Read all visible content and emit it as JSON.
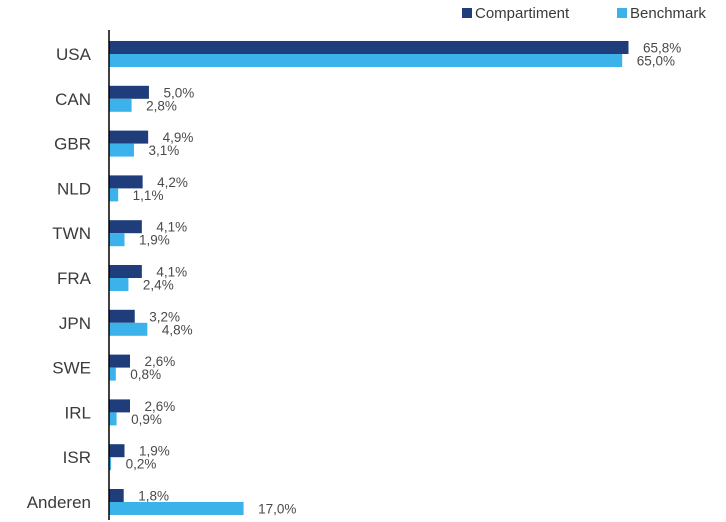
{
  "chart_data": {
    "type": "bar",
    "orientation": "horizontal",
    "categories": [
      "USA",
      "CAN",
      "GBR",
      "NLD",
      "TWN",
      "FRA",
      "JPN",
      "SWE",
      "IRL",
      "ISR",
      "Anderen"
    ],
    "series": [
      {
        "name": "Compartiment",
        "color": "#1f3d7a",
        "values": [
          65.8,
          5.0,
          4.9,
          4.2,
          4.1,
          4.1,
          3.2,
          2.6,
          2.6,
          1.9,
          1.8
        ],
        "labels": [
          "65,8%",
          "5,0%",
          "4,9%",
          "4,2%",
          "4,1%",
          "4,1%",
          "3,2%",
          "2,6%",
          "2,6%",
          "1,9%",
          "1,8%"
        ]
      },
      {
        "name": "Benchmark",
        "color": "#3bb3ea",
        "values": [
          65.0,
          2.8,
          3.1,
          1.1,
          1.9,
          2.4,
          4.8,
          0.8,
          0.9,
          0.2,
          17.0
        ],
        "labels": [
          "65,0%",
          "2,8%",
          "3,1%",
          "1,1%",
          "1,9%",
          "2,4%",
          "4,8%",
          "0,8%",
          "0,9%",
          "0,2%",
          "17,0%"
        ]
      }
    ],
    "xlim": [
      0,
      65.8
    ],
    "grid": false,
    "legend_position": "top-right"
  }
}
